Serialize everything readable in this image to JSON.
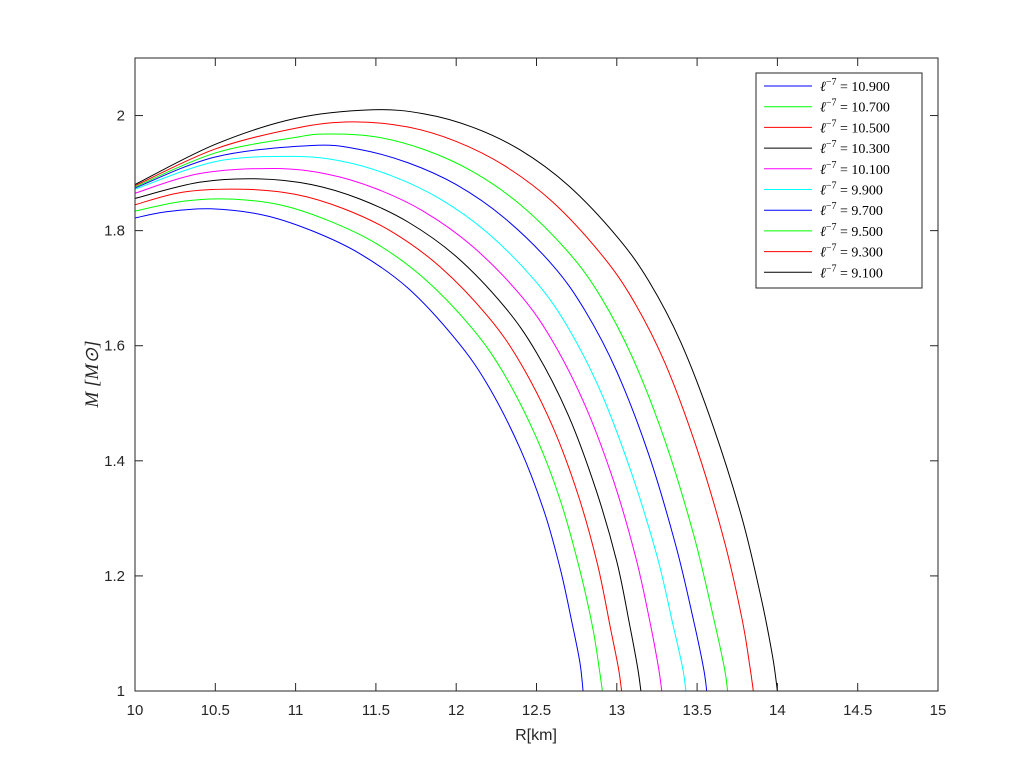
{
  "chart_data": {
    "type": "line",
    "xlabel": "R[km]",
    "ylabel": "M [M⊙]",
    "xlim": [
      10,
      15
    ],
    "ylim": [
      1,
      2.1
    ],
    "xticks": [
      10,
      10.5,
      11,
      11.5,
      12,
      12.5,
      13,
      13.5,
      14,
      14.5,
      15
    ],
    "xtick_labels": [
      "10",
      "10.5",
      "11",
      "11.5",
      "12",
      "12.5",
      "13",
      "13.5",
      "14",
      "14.5",
      "15"
    ],
    "yticks": [
      1,
      1.2,
      1.4,
      1.6,
      1.8,
      2
    ],
    "ytick_labels": [
      "1",
      "1.2",
      "1.4",
      "1.6",
      "1.8",
      "2"
    ],
    "grid": false,
    "legend_position": "top-right",
    "legend_symbol": "ℓ",
    "legend_exponent": "−7",
    "series": [
      {
        "name": "10.900",
        "color": "#0000ff",
        "points": [
          [
            10,
            1.822
          ],
          [
            10.2,
            1.833
          ],
          [
            10.47,
            1.838
          ],
          [
            10.8,
            1.827
          ],
          [
            11.1,
            1.8
          ],
          [
            11.4,
            1.76
          ],
          [
            11.7,
            1.7
          ],
          [
            12.0,
            1.61
          ],
          [
            12.2,
            1.53
          ],
          [
            12.4,
            1.42
          ],
          [
            12.55,
            1.31
          ],
          [
            12.65,
            1.21
          ],
          [
            12.72,
            1.12
          ],
          [
            12.77,
            1.05
          ],
          [
            12.79,
            1.0
          ]
        ]
      },
      {
        "name": "10.700",
        "color": "#00ff00",
        "points": [
          [
            10,
            1.834
          ],
          [
            10.3,
            1.851
          ],
          [
            10.58,
            1.855
          ],
          [
            10.9,
            1.845
          ],
          [
            11.2,
            1.818
          ],
          [
            11.5,
            1.778
          ],
          [
            11.8,
            1.717
          ],
          [
            12.1,
            1.63
          ],
          [
            12.3,
            1.55
          ],
          [
            12.5,
            1.44
          ],
          [
            12.65,
            1.33
          ],
          [
            12.77,
            1.21
          ],
          [
            12.85,
            1.11
          ],
          [
            12.89,
            1.04
          ],
          [
            12.91,
            1.0
          ]
        ]
      },
      {
        "name": "10.500",
        "color": "#ff0000",
        "points": [
          [
            10,
            1.845
          ],
          [
            10.3,
            1.867
          ],
          [
            10.67,
            1.872
          ],
          [
            11.0,
            1.863
          ],
          [
            11.3,
            1.838
          ],
          [
            11.6,
            1.798
          ],
          [
            11.9,
            1.737
          ],
          [
            12.2,
            1.65
          ],
          [
            12.4,
            1.57
          ],
          [
            12.6,
            1.46
          ],
          [
            12.76,
            1.34
          ],
          [
            12.88,
            1.22
          ],
          [
            12.96,
            1.11
          ],
          [
            13.01,
            1.04
          ],
          [
            13.03,
            1.0
          ]
        ]
      },
      {
        "name": "10.300",
        "color": "#000000",
        "points": [
          [
            10,
            1.856
          ],
          [
            10.4,
            1.884
          ],
          [
            10.77,
            1.89
          ],
          [
            11.1,
            1.88
          ],
          [
            11.4,
            1.855
          ],
          [
            11.7,
            1.815
          ],
          [
            12.0,
            1.755
          ],
          [
            12.3,
            1.668
          ],
          [
            12.5,
            1.588
          ],
          [
            12.7,
            1.478
          ],
          [
            12.87,
            1.35
          ],
          [
            13.0,
            1.225
          ],
          [
            13.08,
            1.115
          ],
          [
            13.13,
            1.04
          ],
          [
            13.15,
            1.0
          ]
        ]
      },
      {
        "name": "10.100",
        "color": "#ff00ff",
        "points": [
          [
            10,
            1.865
          ],
          [
            10.4,
            1.899
          ],
          [
            10.87,
            1.908
          ],
          [
            11.2,
            1.898
          ],
          [
            11.5,
            1.873
          ],
          [
            11.8,
            1.833
          ],
          [
            12.1,
            1.773
          ],
          [
            12.4,
            1.688
          ],
          [
            12.6,
            1.608
          ],
          [
            12.8,
            1.498
          ],
          [
            12.98,
            1.365
          ],
          [
            13.12,
            1.23
          ],
          [
            13.21,
            1.115
          ],
          [
            13.26,
            1.04
          ],
          [
            13.28,
            1.0
          ]
        ]
      },
      {
        "name": "9.900",
        "color": "#00ffff",
        "points": [
          [
            10,
            1.872
          ],
          [
            10.5,
            1.92
          ],
          [
            10.98,
            1.929
          ],
          [
            11.3,
            1.92
          ],
          [
            11.6,
            1.895
          ],
          [
            11.9,
            1.855
          ],
          [
            12.2,
            1.795
          ],
          [
            12.5,
            1.71
          ],
          [
            12.7,
            1.63
          ],
          [
            12.9,
            1.52
          ],
          [
            13.09,
            1.38
          ],
          [
            13.25,
            1.235
          ],
          [
            13.35,
            1.115
          ],
          [
            13.41,
            1.04
          ],
          [
            13.43,
            1.0
          ]
        ]
      },
      {
        "name": "9.700",
        "color": "#0000ff",
        "points": [
          [
            10,
            1.874
          ],
          [
            10.5,
            1.928
          ],
          [
            11.1,
            1.948
          ],
          [
            11.4,
            1.941
          ],
          [
            11.7,
            1.918
          ],
          [
            12.0,
            1.88
          ],
          [
            12.3,
            1.822
          ],
          [
            12.6,
            1.74
          ],
          [
            12.8,
            1.662
          ],
          [
            13.0,
            1.555
          ],
          [
            13.2,
            1.41
          ],
          [
            13.37,
            1.25
          ],
          [
            13.48,
            1.12
          ],
          [
            13.54,
            1.04
          ],
          [
            13.56,
            1.0
          ]
        ]
      },
      {
        "name": "9.500",
        "color": "#00ff00",
        "points": [
          [
            10,
            1.876
          ],
          [
            10.5,
            1.935
          ],
          [
            11.0,
            1.962
          ],
          [
            11.2,
            1.968
          ],
          [
            11.5,
            1.963
          ],
          [
            11.8,
            1.941
          ],
          [
            12.1,
            1.903
          ],
          [
            12.4,
            1.845
          ],
          [
            12.7,
            1.762
          ],
          [
            12.9,
            1.685
          ],
          [
            13.1,
            1.578
          ],
          [
            13.3,
            1.435
          ],
          [
            13.48,
            1.27
          ],
          [
            13.6,
            1.13
          ],
          [
            13.67,
            1.04
          ],
          [
            13.69,
            1.0
          ]
        ]
      },
      {
        "name": "9.300",
        "color": "#ff0000",
        "points": [
          [
            10,
            1.878
          ],
          [
            10.5,
            1.942
          ],
          [
            11.0,
            1.978
          ],
          [
            11.35,
            1.989
          ],
          [
            11.7,
            1.98
          ],
          [
            12.0,
            1.955
          ],
          [
            12.3,
            1.913
          ],
          [
            12.6,
            1.85
          ],
          [
            12.9,
            1.76
          ],
          [
            13.1,
            1.68
          ],
          [
            13.3,
            1.57
          ],
          [
            13.5,
            1.42
          ],
          [
            13.67,
            1.26
          ],
          [
            13.78,
            1.125
          ],
          [
            13.83,
            1.04
          ],
          [
            13.85,
            1.0
          ]
        ]
      },
      {
        "name": "9.100",
        "color": "#000000",
        "points": [
          [
            10,
            1.88
          ],
          [
            10.5,
            1.95
          ],
          [
            11.0,
            1.995
          ],
          [
            11.48,
            2.01
          ],
          [
            11.8,
            2.003
          ],
          [
            12.1,
            1.98
          ],
          [
            12.4,
            1.94
          ],
          [
            12.7,
            1.878
          ],
          [
            13.0,
            1.79
          ],
          [
            13.2,
            1.712
          ],
          [
            13.4,
            1.605
          ],
          [
            13.6,
            1.46
          ],
          [
            13.78,
            1.3
          ],
          [
            13.9,
            1.16
          ],
          [
            13.97,
            1.06
          ],
          [
            14.0,
            1.0
          ]
        ]
      }
    ]
  }
}
